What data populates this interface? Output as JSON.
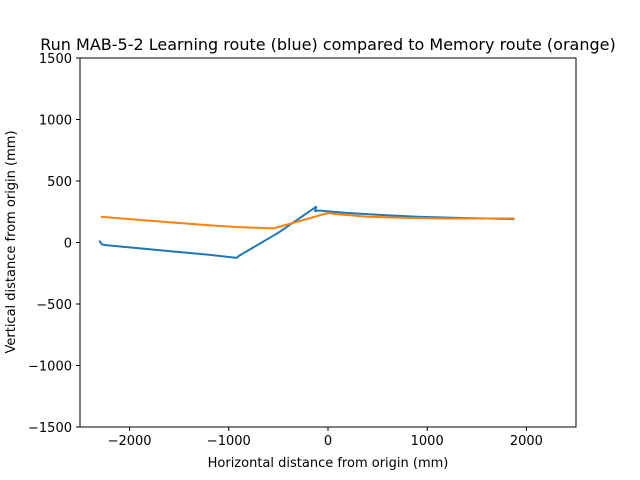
{
  "chart_data": {
    "type": "line",
    "title": "Run MAB-5-2 Learning route (blue) compared to Memory route (orange)",
    "xlabel": "Horizontal distance from origin (mm)",
    "ylabel": "Vertical distance from origin (mm)",
    "xlim": [
      -2500,
      2500
    ],
    "ylim": [
      -1500,
      1500
    ],
    "xticks": [
      -2000,
      -1000,
      0,
      1000,
      2000
    ],
    "yticks": [
      -1500,
      -1000,
      -500,
      0,
      500,
      1000,
      1500
    ],
    "xtick_labels": [
      "−2000",
      "−1000",
      "0",
      "1000",
      "2000"
    ],
    "ytick_labels": [
      "−1500",
      "−1000",
      "−500",
      "0",
      "500",
      "1000",
      "1500"
    ],
    "grid": false,
    "series": [
      {
        "color": "#1f77b4",
        "x": [
          -2290,
          -2300,
          -2280,
          -2250,
          -2000,
          -1600,
          -1200,
          -920,
          -900,
          -500,
          -120,
          -130,
          -100,
          200,
          500,
          900,
          1300,
          1600,
          1880
        ],
        "y": [
          0,
          10,
          -15,
          -20,
          -40,
          -70,
          -100,
          -125,
          -110,
          80,
          290,
          255,
          260,
          240,
          225,
          210,
          200,
          195,
          190
        ]
      },
      {
        "color": "#ff7f0e",
        "x": [
          -2290,
          -2000,
          -1600,
          -1200,
          -900,
          -550,
          0,
          100,
          400,
          800,
          1200,
          1600,
          1880
        ],
        "y": [
          210,
          190,
          165,
          140,
          125,
          115,
          240,
          230,
          210,
          200,
          195,
          195,
          195
        ]
      }
    ]
  }
}
